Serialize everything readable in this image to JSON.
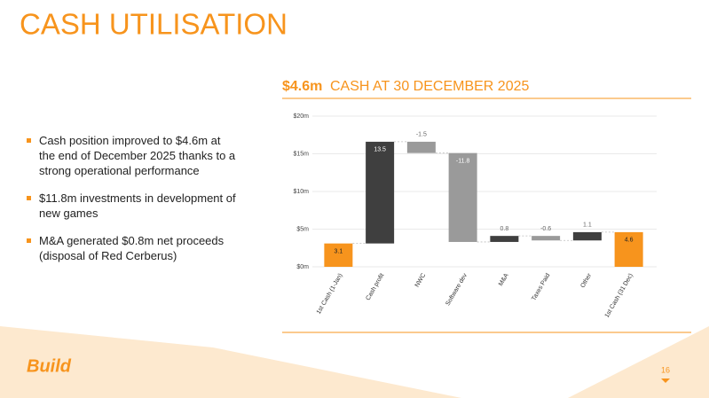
{
  "header": {
    "title": "CASH UTILISATION"
  },
  "chart_header": {
    "highlight": "$4.6m",
    "title": "CASH AT 30 DECEMBER 2025"
  },
  "bullets": [
    "Cash position improved to $4.6m at the end of December 2025 thanks to a strong operational performance",
    "$11.8m investments in development of new games",
    "M&A generated $0.8m net proceeds (disposal of Red Cerberus)"
  ],
  "footer": {
    "logo": "Build",
    "page": "16"
  },
  "chart_data": {
    "type": "waterfall",
    "categories": [
      "1st Cash (1-Jan)",
      "Cash profit",
      "NWC",
      "Software dev",
      "M&A",
      "Taxes Paid",
      "Other",
      "1st Cash (31 Dec)"
    ],
    "values": [
      3.1,
      13.5,
      -1.5,
      -11.8,
      0.8,
      -0.6,
      1.1,
      4.6
    ],
    "bar_kinds": [
      "total",
      "delta",
      "delta",
      "delta",
      "delta",
      "delta",
      "delta",
      "total"
    ],
    "colors": [
      "#f7941d",
      "#3f3f3f",
      "#9a9a9a",
      "#9a9a9a",
      "#3f3f3f",
      "#9a9a9a",
      "#3f3f3f",
      "#f7941d"
    ],
    "ylim": [
      0,
      20
    ],
    "yticks": [
      {
        "value": 0,
        "label": "$0m"
      },
      {
        "value": 5,
        "label": "$5m"
      },
      {
        "value": 10,
        "label": "$10m"
      },
      {
        "value": 15,
        "label": "$15m"
      },
      {
        "value": 20,
        "label": "$20m"
      }
    ],
    "grid": true
  }
}
